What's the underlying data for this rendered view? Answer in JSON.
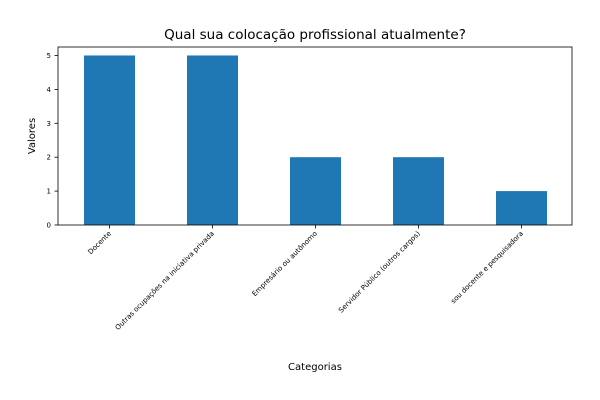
{
  "chart_data": {
    "type": "bar",
    "title": "Qual sua colocação profissional atualmente?",
    "xlabel": "Categorias",
    "ylabel": "Valores",
    "categories": [
      "Docente",
      "Outras ocupações na iniciativa privada",
      "Empresário ou autônomo",
      "Servidor Público (outros cargos)",
      "sou docente e pesquisadora"
    ],
    "values": [
      5,
      5,
      2,
      2,
      1
    ],
    "ylim": [
      0,
      5.25
    ],
    "yticks": [
      "0",
      "1",
      "2",
      "3",
      "4",
      "5"
    ],
    "grid": false,
    "bar_color": "#1f77b4"
  }
}
